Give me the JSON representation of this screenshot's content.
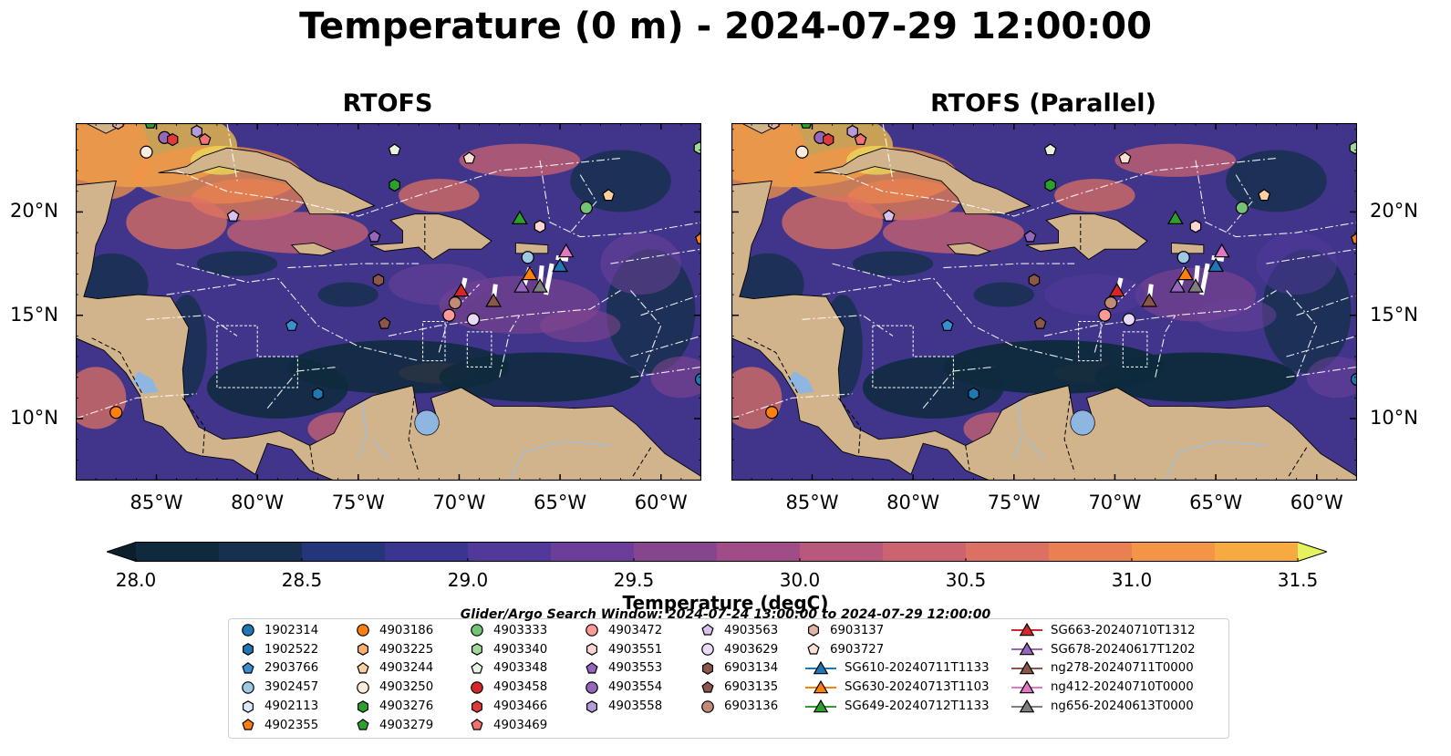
{
  "title": "Temperature (0 m) - 2024-07-29 12:00:00",
  "panels": [
    {
      "title": "RTOFS",
      "variant": "a"
    },
    {
      "title": "RTOFS (Parallel)",
      "variant": "b"
    }
  ],
  "map": {
    "lon_range": [
      -89,
      -58
    ],
    "lat_range": [
      7,
      24.3
    ],
    "lon_ticks": [
      {
        "value": -85,
        "label": "85°W"
      },
      {
        "value": -80,
        "label": "80°W"
      },
      {
        "value": -75,
        "label": "75°W"
      },
      {
        "value": -70,
        "label": "70°W"
      },
      {
        "value": -65,
        "label": "65°W"
      },
      {
        "value": -60,
        "label": "60°W"
      }
    ],
    "lat_ticks": [
      {
        "value": 20,
        "label": "20°N"
      },
      {
        "value": 15,
        "label": "15°N"
      },
      {
        "value": 10,
        "label": "10°N"
      }
    ],
    "colors": {
      "land": "#d2b48c",
      "ocean_base": "#40358a",
      "lake": "#8fb6e0",
      "river": "#a4bfd8"
    }
  },
  "colorbar": {
    "label": "Temperature (degC)",
    "min": 28.0,
    "max": 31.5,
    "step": 0.25,
    "extend": "both",
    "tick_labels": [
      "28.0",
      "28.5",
      "29.0",
      "29.5",
      "30.0",
      "30.5",
      "31.0",
      "31.5"
    ],
    "colors": [
      "#0e2a3c",
      "#17304f",
      "#253579",
      "#3b3592",
      "#51399a",
      "#6b3f99",
      "#86468f",
      "#a04d87",
      "#b8587d",
      "#cc6370",
      "#dc7062",
      "#ea8052",
      "#f39447",
      "#f7aa40",
      "#f6c646",
      "#eadd5b"
    ],
    "under_color": "#0b1f2b",
    "over_color": "#e4f25f"
  },
  "legend": {
    "note": "Glider/Argo Search Window: 2024-07-24 13:00:00 to 2024-07-29 12:00:00",
    "columns": [
      [
        {
          "label": "1902314",
          "marker": "circle",
          "color": "#1f77b4"
        },
        {
          "label": "1902522",
          "marker": "hexagon",
          "color": "#1f77b4"
        },
        {
          "label": "2903766",
          "marker": "pentagon",
          "color": "#3a8fd0"
        },
        {
          "label": "3902457",
          "marker": "circle",
          "color": "#9ecae1"
        },
        {
          "label": "4902113",
          "marker": "hexagon",
          "color": "#deebf7"
        },
        {
          "label": "4902355",
          "marker": "pentagon",
          "color": "#ff7f0e"
        }
      ],
      [
        {
          "label": "4903186",
          "marker": "circle",
          "color": "#ff7f0e"
        },
        {
          "label": "4903225",
          "marker": "hexagon",
          "color": "#fdae6b"
        },
        {
          "label": "4903244",
          "marker": "pentagon",
          "color": "#fdd0a2"
        },
        {
          "label": "4903250",
          "marker": "circle",
          "color": "#feedde"
        },
        {
          "label": "4903276",
          "marker": "hexagon",
          "color": "#2ca02c"
        },
        {
          "label": "4903279",
          "marker": "pentagon",
          "color": "#2ca02c"
        }
      ],
      [
        {
          "label": "4903333",
          "marker": "circle",
          "color": "#74c476"
        },
        {
          "label": "4903340",
          "marker": "hexagon",
          "color": "#a1d99b"
        },
        {
          "label": "4903348",
          "marker": "pentagon",
          "color": "#e5f5e0"
        },
        {
          "label": "4903458",
          "marker": "circle",
          "color": "#d62728"
        },
        {
          "label": "4903466",
          "marker": "hexagon",
          "color": "#e0393b"
        },
        {
          "label": "4903469",
          "marker": "pentagon",
          "color": "#f0736f"
        }
      ],
      [
        {
          "label": "4903472",
          "marker": "circle",
          "color": "#fc9a96"
        },
        {
          "label": "4903551",
          "marker": "hexagon",
          "color": "#fcd5d4"
        },
        {
          "label": "4903553",
          "marker": "pentagon",
          "color": "#9467bd"
        },
        {
          "label": "4903554",
          "marker": "circle",
          "color": "#9467bd"
        },
        {
          "label": "4903558",
          "marker": "hexagon",
          "color": "#b79ad8"
        }
      ],
      [
        {
          "label": "4903563",
          "marker": "pentagon",
          "color": "#d8c3f0"
        },
        {
          "label": "4903629",
          "marker": "circle",
          "color": "#ead9f7"
        },
        {
          "label": "6903134",
          "marker": "hexagon",
          "color": "#8c564b"
        },
        {
          "label": "6903135",
          "marker": "pentagon",
          "color": "#8c564b"
        },
        {
          "label": "6903136",
          "marker": "circle",
          "color": "#c48a76"
        }
      ],
      [
        {
          "label": "6903137",
          "marker": "hexagon",
          "color": "#e3b3a3"
        },
        {
          "label": "6903727",
          "marker": "pentagon",
          "color": "#fbe0d8"
        },
        {
          "label": "SG610-20240711T1133",
          "marker": "triangle-line",
          "color": "#1f77b4"
        },
        {
          "label": "SG630-20240713T1103",
          "marker": "triangle-line",
          "color": "#ff7f0e"
        },
        {
          "label": "SG649-20240712T1133",
          "marker": "triangle-line",
          "color": "#2ca02c"
        }
      ],
      [
        {
          "label": "SG663-20240710T1312",
          "marker": "triangle-line",
          "color": "#d62728"
        },
        {
          "label": "SG678-20240617T1202",
          "marker": "triangle-line",
          "color": "#9467bd"
        },
        {
          "label": "ng278-20240711T0000",
          "marker": "triangle-line",
          "color": "#8c564b"
        },
        {
          "label": "ng412-20240710T0000",
          "marker": "triangle-line",
          "color": "#e377c2"
        },
        {
          "label": "ng656-20240613T0000",
          "marker": "triangle-line",
          "color": "#7f7f7f"
        }
      ]
    ]
  },
  "observations": [
    {
      "id": "4902355",
      "lon": -58.0,
      "lat": 18.7
    },
    {
      "id": "4903333",
      "lon": -63.7,
      "lat": 20.2
    },
    {
      "id": "4903244",
      "lon": -62.6,
      "lat": 20.8
    },
    {
      "id": "4903551",
      "lon": -66.0,
      "lat": 19.3
    },
    {
      "id": "SG649-20240712T1133",
      "lon": -67.0,
      "lat": 19.7
    },
    {
      "id": "6903727",
      "lon": -69.5,
      "lat": 22.6
    },
    {
      "id": "4903348",
      "lon": -73.2,
      "lat": 23.0
    },
    {
      "id": "4903276",
      "lon": -73.2,
      "lat": 21.3
    },
    {
      "id": "4903563",
      "lon": -81.2,
      "lat": 19.8
    },
    {
      "id": "4903553",
      "lon": -74.2,
      "lat": 18.8
    },
    {
      "id": "4903250",
      "lon": -85.5,
      "lat": 22.9
    },
    {
      "id": "4903554",
      "lon": -84.6,
      "lat": 23.6
    },
    {
      "id": "4903466",
      "lon": -84.2,
      "lat": 23.5
    },
    {
      "id": "4903558",
      "lon": -83.0,
      "lat": 23.9
    },
    {
      "id": "4903469",
      "lon": -82.6,
      "lat": 23.5
    },
    {
      "id": "6903137",
      "lon": -86.9,
      "lat": 24.3
    },
    {
      "id": "4903279",
      "lon": -85.3,
      "lat": 24.3
    },
    {
      "id": "4903340",
      "lon": -58.1,
      "lat": 23.1
    },
    {
      "id": "3902457",
      "lon": -66.6,
      "lat": 17.8
    },
    {
      "id": "SG630-20240713T1103",
      "lon": -66.5,
      "lat": 17.0
    },
    {
      "id": "SG610-20240711T1133",
      "lon": -65.0,
      "lat": 17.4
    },
    {
      "id": "ng412-20240710T0000",
      "lon": -64.7,
      "lat": 18.1
    },
    {
      "id": "SG678-20240617T1202",
      "lon": -66.9,
      "lat": 16.4
    },
    {
      "id": "ng656-20240613T0000",
      "lon": -66.0,
      "lat": 16.4
    },
    {
      "id": "ng278-20240711T0000",
      "lon": -68.3,
      "lat": 15.7
    },
    {
      "id": "SG663-20240710T1312",
      "lon": -69.9,
      "lat": 16.2
    },
    {
      "id": "6903136",
      "lon": -70.2,
      "lat": 15.6
    },
    {
      "id": "4903472",
      "lon": -70.5,
      "lat": 15.0
    },
    {
      "id": "4903629",
      "lon": -69.3,
      "lat": 14.8
    },
    {
      "id": "6903134",
      "lon": -74.0,
      "lat": 16.7
    },
    {
      "id": "6903135",
      "lon": -73.7,
      "lat": 14.6
    },
    {
      "id": "2903766",
      "lon": -78.3,
      "lat": 14.5
    },
    {
      "id": "1902522",
      "lon": -77.0,
      "lat": 11.2
    },
    {
      "id": "4903186",
      "lon": -87.0,
      "lat": 10.3
    },
    {
      "id": "1902314",
      "lon": -58.0,
      "lat": 11.9
    }
  ]
}
